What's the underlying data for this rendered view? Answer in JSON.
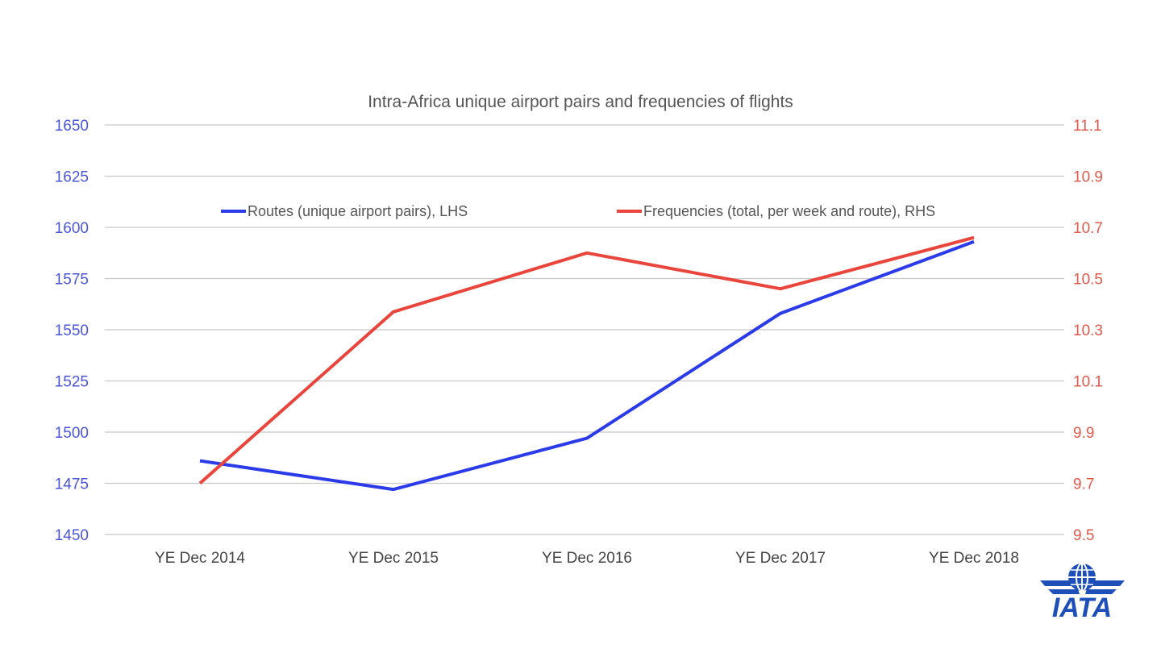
{
  "colors": {
    "routes": "#2B3BE8",
    "frequencies": "#E8453C",
    "grid": "#C8C8C8",
    "left_axis_text": "#4B55D6",
    "right_axis_text": "#E05A4E",
    "logo": "#1E4FB8"
  },
  "logo": {
    "icon": "iata-globe-wings-icon",
    "text": "IATA"
  },
  "chart_data": {
    "type": "line",
    "title": "Intra-Africa unique airport pairs and frequencies of flights",
    "categories": [
      "YE Dec 2014",
      "YE Dec 2015",
      "YE Dec 2016",
      "YE Dec 2017",
      "YE Dec 2018"
    ],
    "y_left": {
      "ylim": [
        1450,
        1650
      ],
      "ticks": [
        "1650",
        "1625",
        "1600",
        "1575",
        "1550",
        "1525",
        "1500",
        "1475",
        "1450"
      ],
      "tick_values": [
        1650,
        1625,
        1600,
        1575,
        1550,
        1525,
        1500,
        1475,
        1450
      ]
    },
    "y_right": {
      "ylim": [
        9.5,
        11.1
      ],
      "ticks": [
        "11.1",
        "10.9",
        "10.7",
        "10.5",
        "10.3",
        "10.1",
        "9.9",
        "9.7",
        "9.5"
      ],
      "tick_values": [
        11.1,
        10.9,
        10.7,
        10.5,
        10.3,
        10.1,
        9.9,
        9.7,
        9.5
      ]
    },
    "grid": true,
    "legend_position": "top",
    "series": [
      {
        "name": "Routes (unique airport pairs), LHS",
        "axis": "left",
        "values": [
          1486,
          1472,
          1497,
          1558,
          1593
        ]
      },
      {
        "name": "Frequencies (total, per week and route), RHS",
        "axis": "right",
        "values": [
          9.7,
          10.37,
          10.6,
          10.46,
          10.66
        ]
      }
    ]
  }
}
